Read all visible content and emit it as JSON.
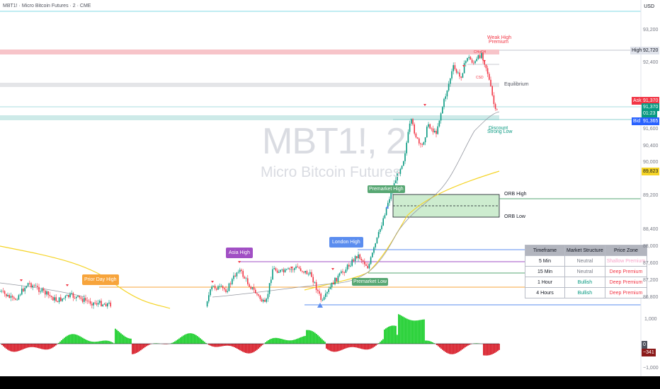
{
  "header": {
    "title": "MBT1! · Micro Bitcoin Futures · 2 · CME",
    "currency": "USD"
  },
  "watermark": {
    "symbol": "MBT1!, 2",
    "name": "Micro Bitcoin Futures"
  },
  "price_axis": {
    "ticks": [
      "93,200",
      "92,400",
      "91,600",
      "90,400",
      "90,000",
      "89,200",
      "88,400",
      "88,000",
      "87,600",
      "87,200",
      "86,800"
    ],
    "high": {
      "tag": "High",
      "value": "92,720"
    },
    "ask": {
      "tag": "Ask",
      "value": "91,370"
    },
    "last": {
      "value": "91,370",
      "countdown": "01:23"
    },
    "bid": {
      "tag": "Bid",
      "value": "91,365"
    },
    "ema": {
      "value": "89,823"
    }
  },
  "osc_axis": {
    "ticks": [
      "1,000",
      "0",
      "−1,000"
    ],
    "zero_tag": "0",
    "value": "−341"
  },
  "chart_labels": {
    "weak_high": "Weak High",
    "premium": "Premium",
    "equilibrium": "Equilibrium",
    "discount": "Discount",
    "strong_low": "Strong Low",
    "orb_high": "ORB High",
    "orb_low": "ORB Low",
    "premarket_high": "Premarket High",
    "premarket_low": "Premarket Low",
    "london_high": "London High",
    "asia_high": "Asia High",
    "prior_day_high": "Prior Day High",
    "choch": "CHoCH",
    "csd": "CSD"
  },
  "colors": {
    "up": "#089981",
    "down": "#f23645",
    "ema": "#f5d427",
    "tag_green": "#57a773",
    "tag_blue": "#5b8def",
    "tag_purple": "#a14fc4",
    "tag_orange": "#f7a43b"
  },
  "table": {
    "headers": [
      "Timeframe",
      "Market Structure",
      "Price Zone"
    ],
    "rows": [
      {
        "tf": "5 Min",
        "ms": "Neutral",
        "zone": "Shallow Premium",
        "ms_color": "#787b86",
        "zone_color": "#f7a3c8"
      },
      {
        "tf": "15 Min",
        "ms": "Neutral",
        "zone": "Deep Premium",
        "ms_color": "#787b86",
        "zone_color": "#f23645"
      },
      {
        "tf": "1 Hour",
        "ms": "Bullish",
        "zone": "Deep Premium",
        "ms_color": "#089981",
        "zone_color": "#f23645"
      },
      {
        "tf": "4 Hours",
        "ms": "Bullish",
        "zone": "Deep Premium",
        "ms_color": "#089981",
        "zone_color": "#f23645"
      }
    ]
  }
}
